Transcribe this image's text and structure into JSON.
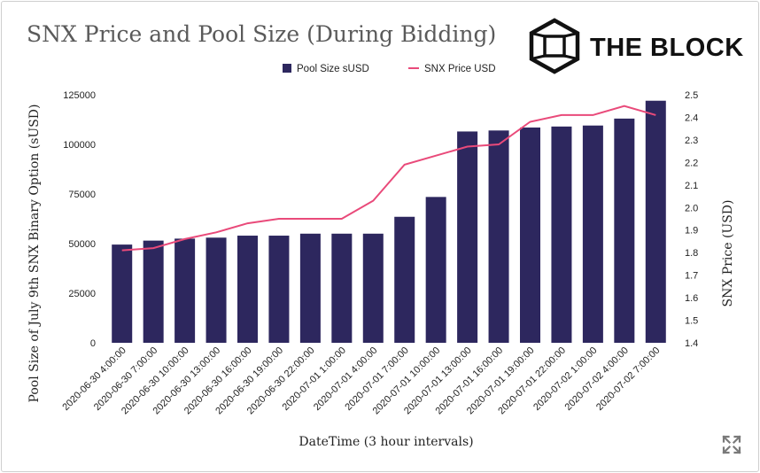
{
  "title": "SNX Price and Pool Size (During Bidding)",
  "brand": {
    "name": "THE BLOCK",
    "logo_icon": "cube-logo-icon"
  },
  "toolbar": {
    "expand_icon": "expand-arrows-icon"
  },
  "colors": {
    "bar": "#2d275e",
    "line": "#e94a7a",
    "title": "#5a5a5a"
  },
  "chart_data": {
    "type": "bar",
    "title": "SNX Price and Pool Size (During Bidding)",
    "xlabel": "DateTime (3 hour intervals)",
    "ylabel": "Pool Size of July 9th SNX Binary Option (sUSD)",
    "ylabel_right": "SNX Price (USD)",
    "ylim": [
      0,
      125000
    ],
    "ylim_right": [
      1.4,
      2.5
    ],
    "yticks": [
      "0",
      "25000",
      "50000",
      "75000",
      "100000",
      "125000"
    ],
    "yticks_right": [
      "1.4",
      "1.5",
      "1.6",
      "1.7",
      "1.8",
      "1.9",
      "2.0",
      "2.1",
      "2.2",
      "2.3",
      "2.4",
      "2.5"
    ],
    "grid": false,
    "legend_position": "top",
    "categories": [
      "2020-06-30 4:00:00",
      "2020-06-30 7:00:00",
      "2020-06-30 10:00:00",
      "2020-06-30 13:00:00",
      "2020-06-30 16:00:00",
      "2020-06-30 19:00:00",
      "2020-06-30 22:00:00",
      "2020-07-01 1:00:00",
      "2020-07-01 4:00:00",
      "2020-07-01 7:00:00",
      "2020-07-01 10:00:00",
      "2020-07-01 13:00:00",
      "2020-07-01 16:00:00",
      "2020-07-01 19:00:00",
      "2020-07-01 22:00:00",
      "2020-07-02 1:00:00",
      "2020-07-02 4:00:00",
      "2020-07-02 7:00:00"
    ],
    "series": [
      {
        "name": "Pool Size sUSD",
        "type": "bar",
        "axis": "left",
        "values": [
          49500,
          51500,
          52500,
          53000,
          54000,
          54000,
          55000,
          55000,
          55000,
          63500,
          73500,
          106500,
          107000,
          108500,
          109000,
          109500,
          113000,
          122000
        ]
      },
      {
        "name": "SNX Price USD",
        "type": "line",
        "axis": "right",
        "values": [
          1.81,
          1.82,
          1.86,
          1.89,
          1.93,
          1.95,
          1.95,
          1.95,
          2.03,
          2.19,
          2.23,
          2.27,
          2.28,
          2.38,
          2.41,
          2.41,
          2.45,
          2.41
        ]
      }
    ]
  }
}
